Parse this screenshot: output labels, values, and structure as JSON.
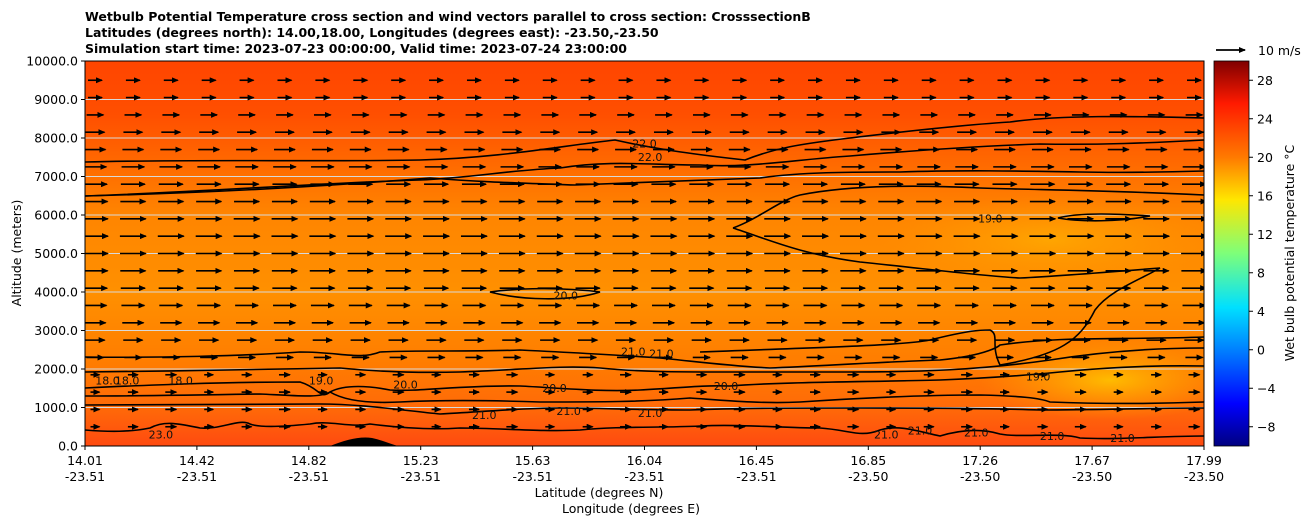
{
  "title_lines": [
    "Wetbulb Potential Temperature cross section and wind vectors parallel to cross section: CrosssectionB",
    "Latitudes (degrees north): 14.00,18.00, Longitudes (degrees east): -23.50,-23.50",
    "Simulation start time: 2023-07-23 00:00:00, Valid time: 2023-07-24 23:00:00"
  ],
  "colors": {
    "field_top": "#ff4a00",
    "field_mid": "#ff7a00",
    "field_core": "#ff9a00",
    "field_warm_low": "#ffb400",
    "field_surface": "#ff5a10",
    "contour": "#000000",
    "vector": "#000000",
    "grid": "#d8d8d8"
  },
  "chart_data": {
    "type": "heatmap",
    "field": "wet bulb potential temperature",
    "ylabel": "Altitude (meters)",
    "xlabel_line1": "Latitude (degrees N)",
    "xlabel_line2": "Longitude (degrees E)",
    "ylim": [
      0,
      10000
    ],
    "xlim": [
      14.01,
      17.99
    ],
    "y_ticks": [
      "0.0",
      "1000.0",
      "2000.0",
      "3000.0",
      "4000.0",
      "5000.0",
      "6000.0",
      "7000.0",
      "8000.0",
      "9000.0",
      "10000.0"
    ],
    "x_ticks_lat": [
      "14.01",
      "14.42",
      "14.82",
      "15.23",
      "15.63",
      "16.04",
      "16.45",
      "16.85",
      "17.26",
      "17.67",
      "17.99"
    ],
    "x_ticks_lon": [
      "-23.51",
      "-23.51",
      "-23.51",
      "-23.51",
      "-23.51",
      "-23.51",
      "-23.51",
      "-23.50",
      "-23.50",
      "-23.50",
      "-23.50"
    ],
    "colorbar": {
      "label": "Wet bulb potential temperature $^\\circ$C",
      "ticks": [
        "−8",
        "−4",
        "0",
        "4",
        "8",
        "12",
        "16",
        "20",
        "24",
        "28"
      ],
      "range": [
        -10,
        30
      ]
    },
    "quiver_key": "10 m/s",
    "grid": true,
    "contour_labels": [
      {
        "text": "22.0",
        "lat": 16.0,
        "alt": 7750
      },
      {
        "text": "22.0",
        "lat": 16.02,
        "alt": 7400
      },
      {
        "text": "19.0",
        "lat": 17.23,
        "alt": 5800
      },
      {
        "text": "20.0",
        "lat": 15.72,
        "alt": 3800
      },
      {
        "text": "21.0",
        "lat": 15.96,
        "alt": 2350
      },
      {
        "text": "21.0",
        "lat": 16.06,
        "alt": 2300
      },
      {
        "text": "18.0",
        "lat": 14.09,
        "alt": 1600
      },
      {
        "text": "18.0",
        "lat": 14.16,
        "alt": 1600
      },
      {
        "text": "18.0",
        "lat": 14.35,
        "alt": 1600
      },
      {
        "text": "19.0",
        "lat": 14.85,
        "alt": 1600
      },
      {
        "text": "20.0",
        "lat": 15.15,
        "alt": 1500
      },
      {
        "text": "20.0",
        "lat": 15.68,
        "alt": 1400
      },
      {
        "text": "20.0",
        "lat": 16.29,
        "alt": 1450
      },
      {
        "text": "19.0",
        "lat": 17.4,
        "alt": 1700
      },
      {
        "text": "21.0",
        "lat": 15.43,
        "alt": 700
      },
      {
        "text": "21.0",
        "lat": 15.73,
        "alt": 800
      },
      {
        "text": "21.0",
        "lat": 16.02,
        "alt": 750
      },
      {
        "text": "23.0",
        "lat": 14.28,
        "alt": 200
      },
      {
        "text": "21.0",
        "lat": 16.86,
        "alt": 200
      },
      {
        "text": "21.0",
        "lat": 16.98,
        "alt": 300
      },
      {
        "text": "21.0",
        "lat": 17.18,
        "alt": 250
      },
      {
        "text": "21.0",
        "lat": 17.45,
        "alt": 150
      },
      {
        "text": "21.0",
        "lat": 17.7,
        "alt": 100
      }
    ]
  }
}
